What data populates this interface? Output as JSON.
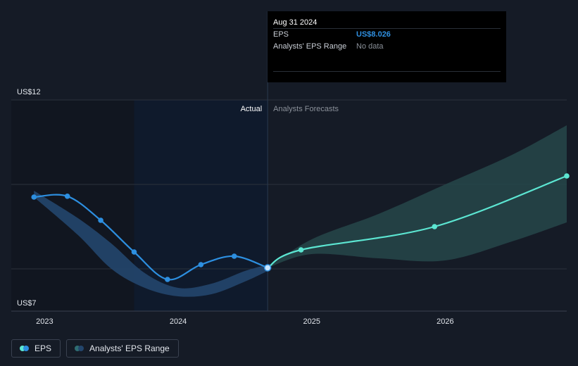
{
  "colors": {
    "background": "#151b26",
    "actual_shade": "#0f1a2c",
    "actual_line": "#2d8fe0",
    "forecast_line": "#5ce6d2",
    "actual_range": "#23466d",
    "forecast_range": "#26474a"
  },
  "tooltip": {
    "date": "Aug 31 2024",
    "eps_label": "EPS",
    "eps_value": "US$8.026",
    "range_label": "Analysts' EPS Range",
    "range_value": "No data"
  },
  "labels": {
    "actual": "Actual",
    "forecast": "Analysts Forecasts"
  },
  "legend": {
    "eps": "EPS",
    "range": "Analysts' EPS Range"
  },
  "chart_data": {
    "type": "line",
    "x_unit": "decimal year",
    "ylim": [
      7,
      12
    ],
    "y_tick_labels": [
      {
        "value": 12,
        "label": "US$12"
      },
      {
        "value": 7,
        "label": "US$7"
      }
    ],
    "y_gridlines": [
      12,
      10,
      8,
      7
    ],
    "x_ticks": [
      {
        "value": 2023,
        "label": "2023"
      },
      {
        "value": 2024,
        "label": "2024"
      },
      {
        "value": 2025,
        "label": "2025"
      },
      {
        "value": 2026,
        "label": "2026"
      }
    ],
    "xlim": [
      2022.75,
      2026.91
    ],
    "actual_window_start": 2023.67,
    "divider_x": 2024.67,
    "series": [
      {
        "name": "EPS",
        "role": "actual",
        "x": [
          2022.92,
          2023.17,
          2023.42,
          2023.67,
          2023.92,
          2024.17,
          2024.42,
          2024.67
        ],
        "values": [
          9.7,
          9.72,
          9.15,
          8.4,
          7.75,
          8.1,
          8.3,
          8.026
        ]
      },
      {
        "name": "EPS",
        "role": "forecast",
        "x": [
          2024.67,
          2024.92,
          2025.92,
          2026.91
        ],
        "values": [
          8.026,
          8.45,
          9.0,
          10.2
        ]
      }
    ],
    "ranges": [
      {
        "role": "actual",
        "x": [
          2022.92,
          2023.25,
          2023.5,
          2023.75,
          2024.0,
          2024.25,
          2024.5,
          2024.67
        ],
        "low": [
          9.7,
          8.8,
          8.0,
          7.55,
          7.35,
          7.4,
          7.7,
          7.95
        ],
        "high": [
          9.85,
          9.2,
          8.6,
          7.9,
          7.55,
          7.65,
          7.95,
          8.1
        ]
      },
      {
        "role": "forecast",
        "x": [
          2024.67,
          2025.0,
          2025.5,
          2026.0,
          2026.5,
          2026.91
        ],
        "low": [
          8.026,
          8.35,
          8.25,
          8.2,
          8.65,
          9.1
        ],
        "high": [
          8.026,
          8.7,
          9.3,
          10.0,
          10.7,
          11.4
        ]
      }
    ]
  }
}
